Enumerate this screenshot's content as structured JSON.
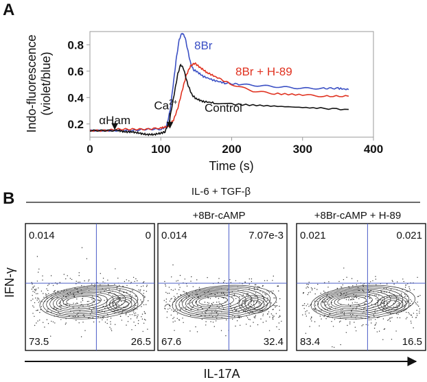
{
  "figure": {
    "panel_a_label": "A",
    "panel_b_label": "B"
  },
  "chart_data": [
    {
      "type": "line",
      "xlabel": "Time (s)",
      "ylabel_line1": "Indo-fluorescence",
      "ylabel_line2": "(violet/blue)",
      "xlim": [
        0,
        400
      ],
      "ylim": [
        0.1,
        0.9
      ],
      "x_ticks": [
        "0",
        "100",
        "200",
        "300",
        "400"
      ],
      "y_ticks": [
        "0.2",
        "0.4",
        "0.6",
        "0.8"
      ],
      "grid": false,
      "annotations": [
        {
          "text": "αHam",
          "x": 35,
          "y": 0.2,
          "arrow_to_y": 0.16
        },
        {
          "text": "Ca",
          "sup": "2+",
          "x": 107,
          "y": 0.31,
          "arrow_to_y": 0.17
        }
      ],
      "series": [
        {
          "name": "8Br",
          "color": "#3a4fc4",
          "x": [
            0,
            20,
            40,
            60,
            80,
            100,
            108,
            113,
            118,
            122,
            126,
            130,
            134,
            138,
            142,
            146,
            150,
            160,
            175,
            190,
            210,
            240,
            270,
            300,
            330,
            350,
            365
          ],
          "y": [
            0.15,
            0.15,
            0.15,
            0.15,
            0.16,
            0.16,
            0.18,
            0.3,
            0.52,
            0.7,
            0.84,
            0.89,
            0.86,
            0.76,
            0.66,
            0.61,
            0.6,
            0.56,
            0.53,
            0.51,
            0.5,
            0.49,
            0.48,
            0.47,
            0.47,
            0.47,
            0.46
          ]
        },
        {
          "name": "8Br + H-89",
          "color": "#e0311f",
          "x": [
            0,
            20,
            40,
            60,
            80,
            100,
            110,
            118,
            124,
            130,
            136,
            142,
            148,
            155,
            165,
            180,
            200,
            230,
            260,
            300,
            330,
            365
          ],
          "y": [
            0.15,
            0.15,
            0.16,
            0.16,
            0.16,
            0.17,
            0.18,
            0.23,
            0.32,
            0.45,
            0.57,
            0.64,
            0.66,
            0.63,
            0.59,
            0.55,
            0.5,
            0.45,
            0.43,
            0.42,
            0.41,
            0.41
          ]
        },
        {
          "name": "Control",
          "color": "#111111",
          "x": [
            0,
            20,
            40,
            50,
            60,
            70,
            80,
            90,
            100,
            106,
            112,
            118,
            124,
            128,
            132,
            138,
            144,
            150,
            160,
            175,
            200,
            240,
            280,
            320,
            365
          ],
          "y": [
            0.15,
            0.15,
            0.15,
            0.14,
            0.14,
            0.13,
            0.12,
            0.12,
            0.13,
            0.14,
            0.22,
            0.4,
            0.58,
            0.65,
            0.62,
            0.5,
            0.42,
            0.39,
            0.37,
            0.36,
            0.35,
            0.34,
            0.33,
            0.32,
            0.31
          ]
        }
      ]
    },
    {
      "type": "scatter",
      "title": "IL-6 + TGF-β",
      "xlabel": "IL-17A",
      "ylabel": "IFN-γ",
      "grid": false,
      "panels": [
        {
          "condition": "",
          "quadrants": {
            "upper_left": "0.014",
            "upper_right": "0",
            "lower_left": "73.5",
            "lower_right": "26.5"
          }
        },
        {
          "condition": "+8Br-cAMP",
          "quadrants": {
            "upper_left": "0.014",
            "upper_right": "7.07e-3",
            "lower_left": "67.6",
            "lower_right": "32.4"
          }
        },
        {
          "condition": "+8Br-cAMP + H-89",
          "quadrants": {
            "upper_left": "0.021",
            "upper_right": "0.021",
            "lower_left": "83.4",
            "lower_right": "16.5"
          }
        }
      ]
    }
  ]
}
